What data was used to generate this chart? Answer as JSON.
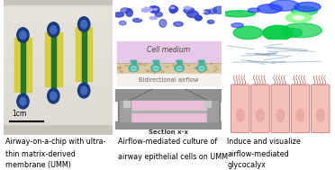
{
  "caption1_line1": "Airway-on-a-chip with ultra-",
  "caption1_line2": "thin matrix-derived",
  "caption1_line3": "membrane (UMM)",
  "caption2_line1": "Airflow-mediated culture of",
  "caption2_line2": "airway epithelial cells on UMM",
  "caption3_line1": "Induce and visualize",
  "caption3_line2": "airflow-mediated",
  "caption3_line3": "glycocalyx",
  "scalebar_text": "1cm",
  "bg_color": "#ffffff",
  "caption_fontsize": 5.8,
  "cell_medium_color": "#e8c8e8",
  "membrane_color": "#dcc8a8",
  "airflow_label": "Bidirectional airflow",
  "cell_medium_label": "Cell medium",
  "section_label": "Section x-x",
  "chip_bg": "#d0ccc4",
  "chip_yellow": "#d8cc30",
  "chip_green": "#207830",
  "chip_blue_dark": "#1a3a7a",
  "chip_blue_light": "#4068c0"
}
